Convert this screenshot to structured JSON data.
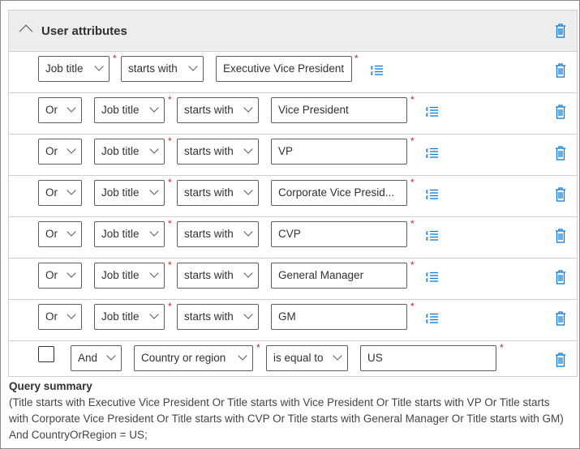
{
  "section": {
    "title": "User attributes"
  },
  "first_row": {
    "attribute": "Job title",
    "operator": "starts with",
    "value": "Executive Vice President"
  },
  "or_rows": [
    {
      "connector": "Or",
      "attribute": "Job title",
      "operator": "starts with",
      "value": "Vice President"
    },
    {
      "connector": "Or",
      "attribute": "Job title",
      "operator": "starts with",
      "value": "VP"
    },
    {
      "connector": "Or",
      "attribute": "Job title",
      "operator": "starts with",
      "value": "Corporate Vice Presid..."
    },
    {
      "connector": "Or",
      "attribute": "Job title",
      "operator": "starts with",
      "value": "CVP"
    },
    {
      "connector": "Or",
      "attribute": "Job title",
      "operator": "starts with",
      "value": "General Manager"
    },
    {
      "connector": "Or",
      "attribute": "Job title",
      "operator": "starts with",
      "value": "GM"
    }
  ],
  "last_row": {
    "checked": false,
    "connector": "And",
    "attribute": "Country or region",
    "operator": "is equal to",
    "value": "US"
  },
  "required_mark": "*",
  "query_summary": {
    "title": "Query summary",
    "text": "(Title starts with Executive Vice President Or Title starts with Vice President Or Title starts with VP Or Title starts with Corporate Vice President Or Title starts with CVP Or Title starts with General Manager Or Title starts with GM) And CountryOrRegion = US;"
  },
  "colors": {
    "accent": "#0078d4",
    "required": "#c4262e",
    "header_bg": "#ededed"
  }
}
